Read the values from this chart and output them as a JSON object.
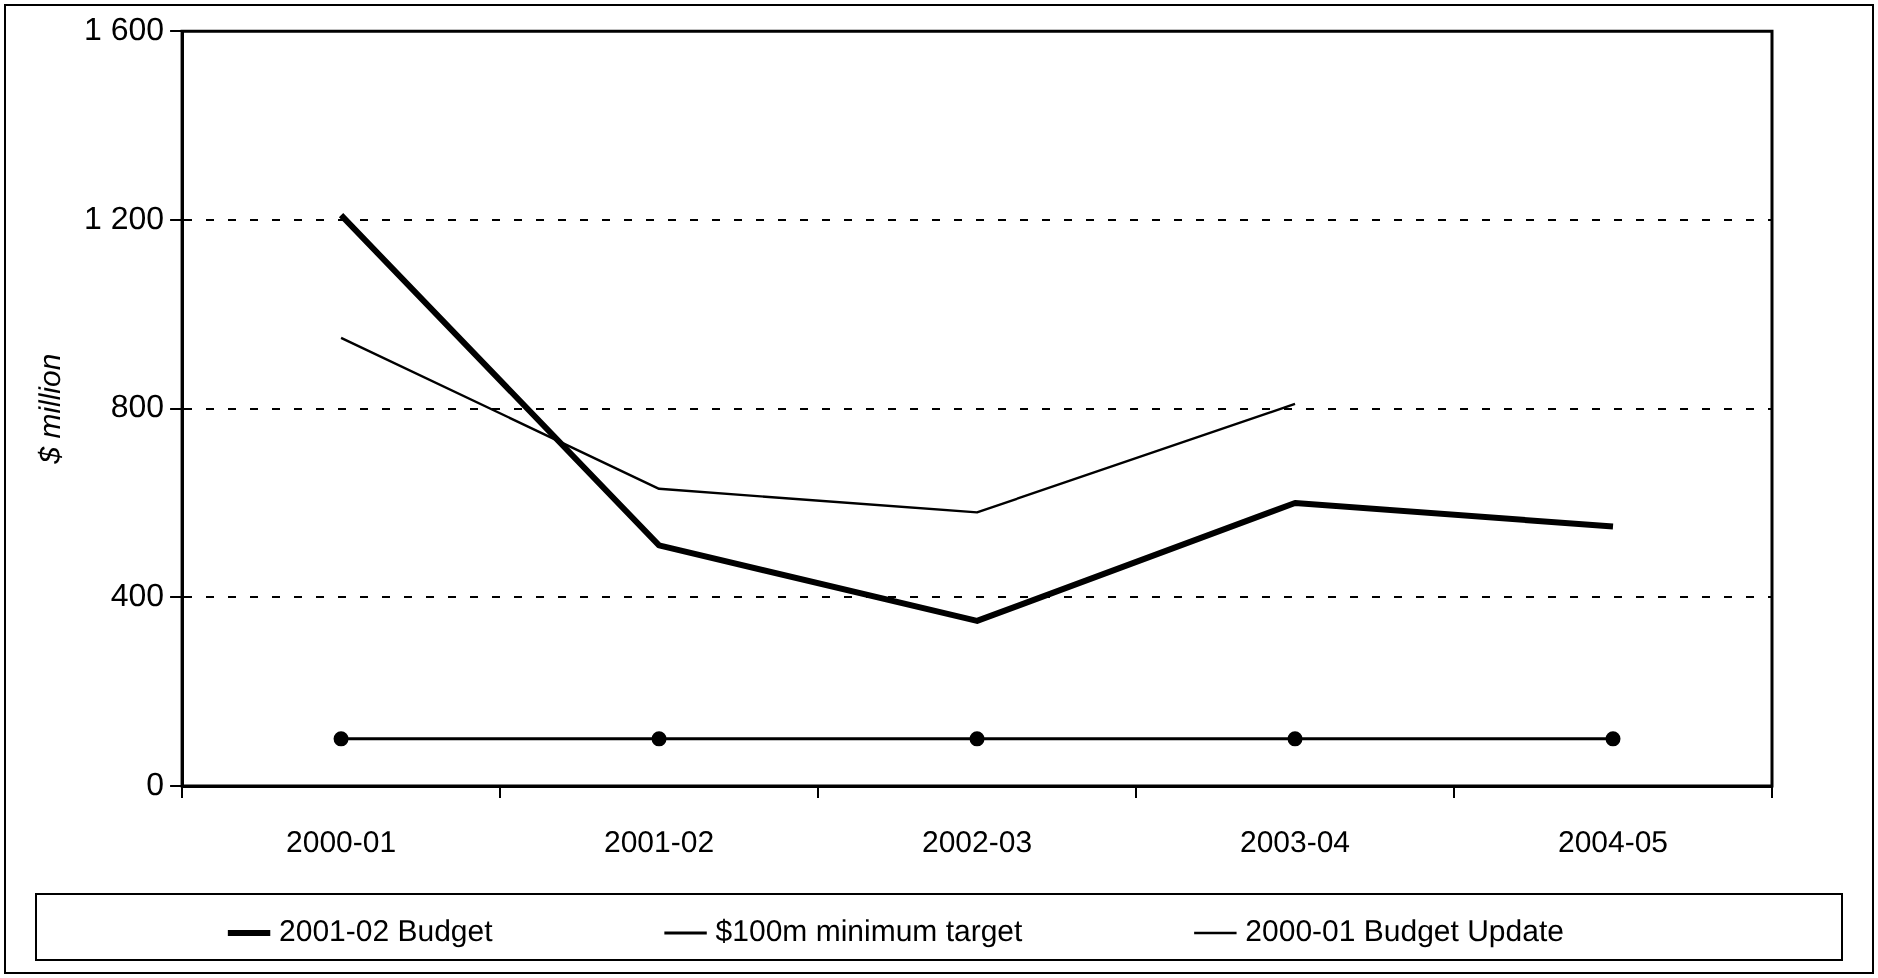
{
  "chart_data": {
    "type": "line",
    "ylabel": "$ million",
    "categories": [
      "2000-01",
      "2001-02",
      "2002-03",
      "2003-04",
      "2004-05"
    ],
    "series": [
      {
        "name": "2001-02 Budget",
        "color": "#000000",
        "values": [
          1210,
          510,
          350,
          600,
          550
        ],
        "marker": "none"
      },
      {
        "name": "$100m minimum target",
        "color": "#000000",
        "values": [
          100,
          100,
          100,
          100,
          100
        ],
        "marker": "circle"
      },
      {
        "name": "2000-01 Budget Update",
        "color": "#000000",
        "values": [
          950,
          630,
          580,
          810,
          null
        ],
        "marker": "none"
      }
    ],
    "ylim": [
      0,
      1600
    ],
    "yticks": [
      0,
      400,
      800,
      {
        "value": 1200,
        "label": "1 200"
      },
      {
        "value": 1600,
        "label": "1 600"
      }
    ],
    "grid": "y",
    "legend": "bottom",
    "line_style": "solid"
  }
}
